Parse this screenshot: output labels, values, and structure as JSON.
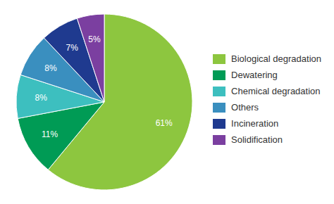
{
  "chart_data": {
    "type": "pie",
    "categories": [
      "Biological degradation",
      "Dewatering",
      "Chemical degradation",
      "Others",
      "Incineration",
      "Solidification"
    ],
    "values": [
      61,
      11,
      8,
      8,
      7,
      5
    ],
    "value_labels": [
      "61%",
      "11%",
      "8%",
      "8%",
      "7%",
      "5%"
    ],
    "colors": [
      "#8dc63f",
      "#009b55",
      "#3dbfbf",
      "#3a8fbf",
      "#1f3a8f",
      "#7b3fa0"
    ],
    "data_labels": true,
    "legend": "right"
  }
}
